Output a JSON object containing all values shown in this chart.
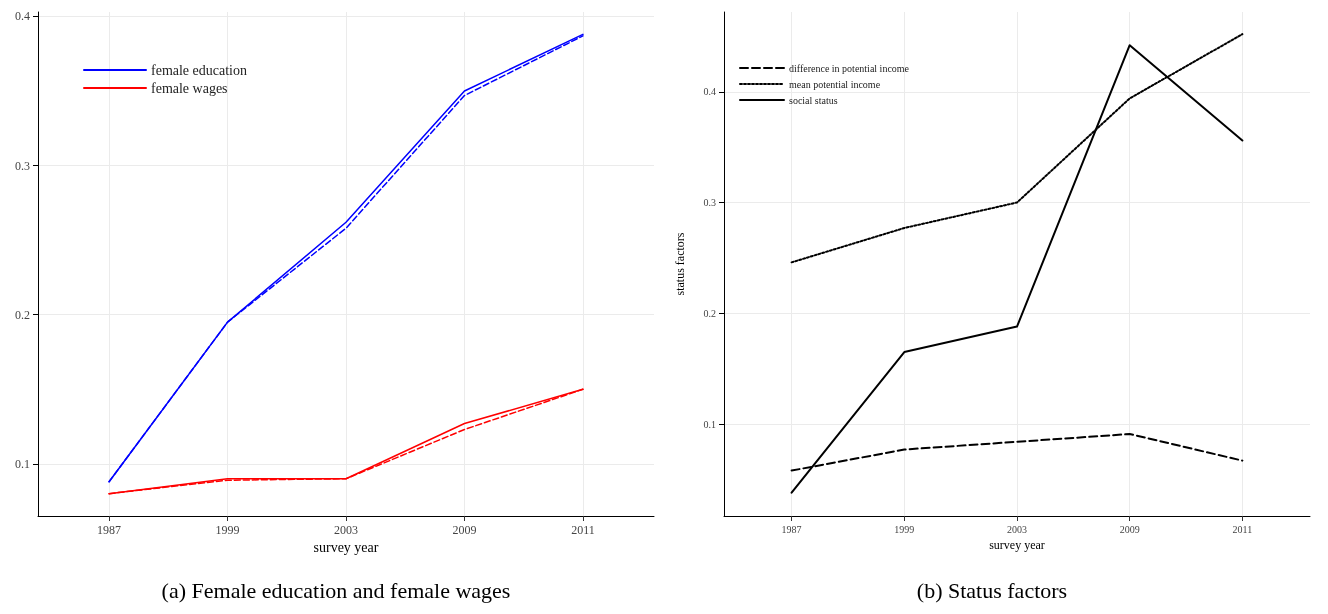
{
  "chart_data": [
    {
      "type": "line",
      "title": "(a) Female education and female wages",
      "xlabel": "survey year",
      "categories": [
        "1987",
        "1999",
        "2003",
        "2009",
        "2011"
      ],
      "series": [
        {
          "name": "female education",
          "color": "#0000ff",
          "line_style": "solid",
          "values": [
            0.088,
            0.195,
            0.262,
            0.35,
            0.388
          ]
        },
        {
          "color": "#0000ff",
          "line_style": "dashed",
          "values": [
            0.088,
            0.195,
            0.258,
            0.347,
            0.387
          ]
        },
        {
          "name": "female wages",
          "color": "#ff0000",
          "line_style": "solid",
          "values": [
            0.08,
            0.09,
            0.09,
            0.127,
            0.15
          ]
        },
        {
          "color": "#ff0000",
          "line_style": "dashed",
          "values": [
            0.08,
            0.089,
            0.09,
            0.123,
            0.15
          ]
        }
      ],
      "ylim": [
        0.065,
        0.403
      ],
      "yticks": [
        0.1,
        0.2,
        0.3,
        0.4
      ],
      "grid": true,
      "legend": "top left",
      "marker": "none"
    },
    {
      "type": "line",
      "title": "(b) Status factors",
      "xlabel": "survey year",
      "ylabel": "status factors",
      "categories": [
        "1987",
        "1999",
        "2003",
        "2009",
        "2011"
      ],
      "series": [
        {
          "name": "difference in potential income",
          "color": "#000000",
          "line_style": "dashed",
          "values": [
            0.058,
            0.077,
            0.084,
            0.091,
            0.067
          ]
        },
        {
          "name": "mean potential income",
          "color": "#000000",
          "line_style": "dotted",
          "values": [
            0.246,
            0.277,
            0.3,
            0.394,
            0.452
          ]
        },
        {
          "name": "social status",
          "color": "#000000",
          "line_style": "solid",
          "values": [
            0.038,
            0.165,
            0.188,
            0.442,
            0.356
          ]
        }
      ],
      "ylim": [
        0.017,
        0.472
      ],
      "yticks": [
        0.1,
        0.2,
        0.3,
        0.4
      ],
      "grid": true,
      "legend": "top left",
      "marker": "none"
    }
  ]
}
